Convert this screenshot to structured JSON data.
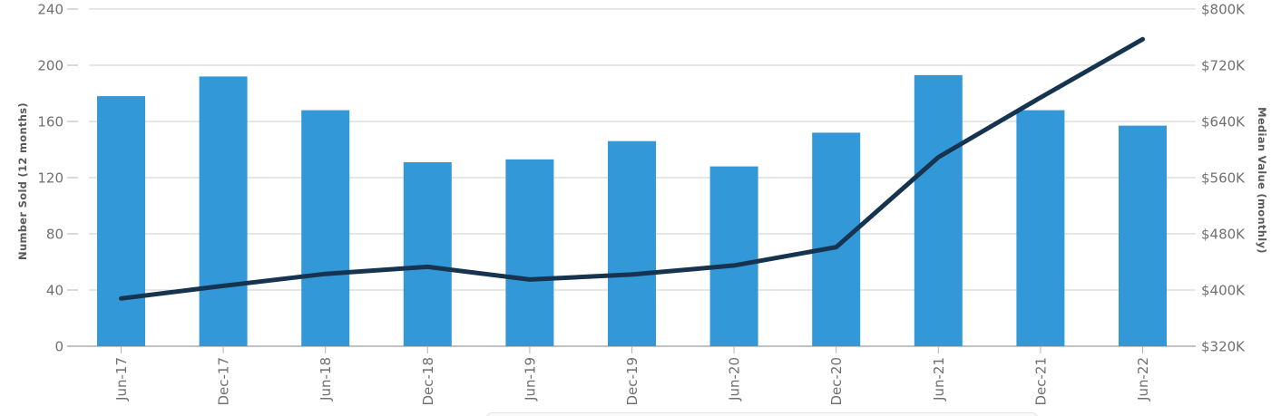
{
  "chart_data": {
    "type": "bar",
    "subtype": "combo-bar-line-dual-axis",
    "title": "",
    "categories": [
      "Jun-17",
      "Dec-17",
      "Jun-18",
      "Dec-18",
      "Jun-19",
      "Dec-19",
      "Jun-20",
      "Dec-20",
      "Jun-21",
      "Dec-21",
      "Jun-22"
    ],
    "series": [
      {
        "name": "Number Sold (12 months)",
        "type": "bar",
        "axis": "left",
        "values": [
          178,
          192,
          168,
          131,
          133,
          146,
          128,
          152,
          193,
          168,
          157
        ]
      },
      {
        "name": "Median Value (monthly)",
        "type": "line",
        "axis": "right",
        "values_usd_thousands": [
          388,
          406,
          423,
          433,
          415,
          422,
          435,
          461,
          589,
          674,
          757
        ]
      }
    ],
    "left_axis": {
      "title": "Number Sold (12 months)",
      "ticks": [
        0,
        40,
        80,
        120,
        160,
        200,
        240
      ],
      "min": 0,
      "max": 240
    },
    "right_axis": {
      "title": "Median Value (monthly)",
      "tick_labels": [
        "$320K",
        "$400K",
        "$480K",
        "$560K",
        "$640K",
        "$720K",
        "$800K"
      ],
      "min_usd_thousands": 320,
      "max_usd_thousands": 800,
      "step_usd_thousands": 80
    },
    "grid": true,
    "legend_position": "none",
    "colors": {
      "bar": "#3398d8",
      "line": "#16344f",
      "gridline": "#cdcdcd",
      "axis_line": "#9e9e9e",
      "tick_mark": "#b4b4b4",
      "tick_text": "#707070",
      "axis_title_text": "#595959",
      "background": "#ffffff"
    }
  },
  "bottom_panel": {
    "note_visible_text": ""
  }
}
